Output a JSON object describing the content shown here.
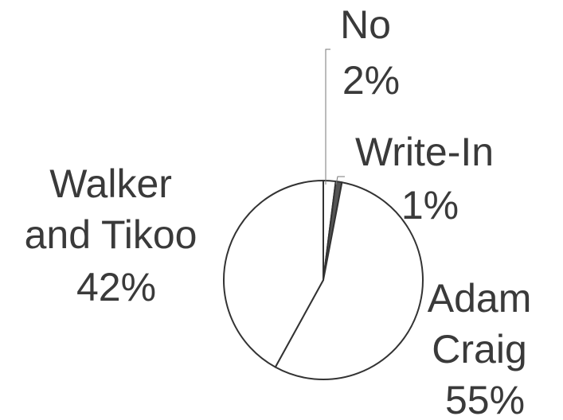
{
  "chart_data": {
    "type": "pie",
    "title": "",
    "slices": [
      {
        "name": "No",
        "label": "No",
        "percent_label": "2%",
        "value": 2,
        "color": "#ffffff"
      },
      {
        "name": "Write-In",
        "label": "Write-In",
        "percent_label": "1%",
        "value": 1,
        "color": "#555555"
      },
      {
        "name": "Adam Craig",
        "label": "Adam Craig",
        "percent_label": "55%",
        "value": 55,
        "color": "#ffffff"
      },
      {
        "name": "Walker and Tikoo",
        "label": "Walker and Tikoo",
        "percent_label": "42%",
        "value": 42,
        "color": "#ffffff"
      }
    ],
    "start_angle": "12 o'clock",
    "direction": "clockwise",
    "legend": "none",
    "labels": [
      {
        "slice": "No",
        "lines": [
          "No",
          "2%"
        ]
      },
      {
        "slice": "Write-In",
        "lines": [
          "Write-In",
          "1%"
        ]
      },
      {
        "slice": "Adam Craig",
        "lines": [
          "Adam",
          "Craig",
          "55%"
        ]
      },
      {
        "slice": "Walker and Tikoo",
        "lines": [
          "Walker",
          "and Tikoo",
          "42%"
        ]
      }
    ]
  }
}
